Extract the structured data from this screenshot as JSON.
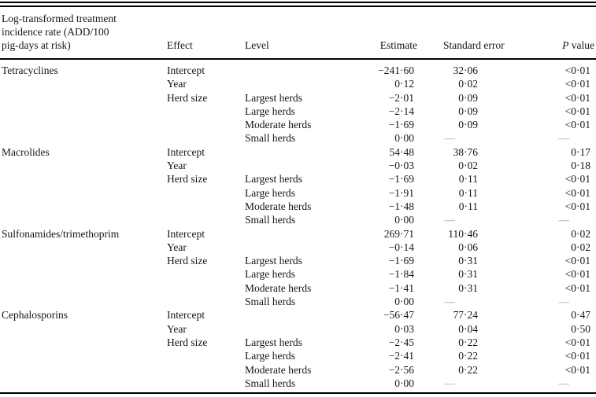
{
  "page": {
    "background": "#ffffff",
    "text_color": "#161616",
    "dash_color": "#9a9a9a",
    "missing_value_glyph": "—"
  },
  "table": {
    "stub_header_lines": [
      "Log-transformed treatment",
      "incidence rate (ADD/100",
      "pig-days at risk)"
    ],
    "columns": [
      {
        "key": "effect",
        "label": "Effect"
      },
      {
        "key": "level",
        "label": "Level"
      },
      {
        "key": "estimate",
        "label": "Estimate"
      },
      {
        "key": "se",
        "label": "Standard error"
      },
      {
        "key": "p",
        "label": "P value",
        "italic_first": true
      }
    ],
    "sections": [
      {
        "name": "Tetracyclines",
        "rows": [
          {
            "effect": "Intercept",
            "level": "",
            "estimate": "−241·60",
            "se": "32·06",
            "p": "<0·01"
          },
          {
            "effect": "Year",
            "level": "",
            "estimate": "0·12",
            "se": "0·02",
            "p": "<0·01"
          },
          {
            "effect": "Herd size",
            "level": "Largest herds",
            "estimate": "−2·01",
            "se": "0·09",
            "p": "<0·01"
          },
          {
            "effect": "",
            "level": "Large herds",
            "estimate": "−2·14",
            "se": "0·09",
            "p": "<0·01"
          },
          {
            "effect": "",
            "level": "Moderate herds",
            "estimate": "−1·69",
            "se": "0·09",
            "p": "<0·01"
          },
          {
            "effect": "",
            "level": "Small herds",
            "estimate": "0·00",
            "se": "—",
            "p": "—"
          }
        ]
      },
      {
        "name": "Macrolides",
        "rows": [
          {
            "effect": "Intercept",
            "level": "",
            "estimate": "54·48",
            "se": "38·76",
            "p": "0·17"
          },
          {
            "effect": "Year",
            "level": "",
            "estimate": "−0·03",
            "se": "0·02",
            "p": "0·18"
          },
          {
            "effect": "Herd size",
            "level": "Largest herds",
            "estimate": "−1·69",
            "se": "0·11",
            "p": "<0·01"
          },
          {
            "effect": "",
            "level": "Large herds",
            "estimate": "−1·91",
            "se": "0·11",
            "p": "<0·01"
          },
          {
            "effect": "",
            "level": "Moderate herds",
            "estimate": "−1·48",
            "se": "0·11",
            "p": "<0·01"
          },
          {
            "effect": "",
            "level": "Small herds",
            "estimate": "0·00",
            "se": "—",
            "p": "—"
          }
        ]
      },
      {
        "name": "Sulfonamides/trimethoprim",
        "rows": [
          {
            "effect": "Intercept",
            "level": "",
            "estimate": "269·71",
            "se": "110·46",
            "p": "0·02"
          },
          {
            "effect": "Year",
            "level": "",
            "estimate": "−0·14",
            "se": "0·06",
            "p": "0·02"
          },
          {
            "effect": "Herd size",
            "level": "Largest herds",
            "estimate": "−1·69",
            "se": "0·31",
            "p": "<0·01"
          },
          {
            "effect": "",
            "level": "Large herds",
            "estimate": "−1·84",
            "se": "0·31",
            "p": "<0·01"
          },
          {
            "effect": "",
            "level": "Moderate herds",
            "estimate": "−1·41",
            "se": "0·31",
            "p": "<0·01"
          },
          {
            "effect": "",
            "level": "Small herds",
            "estimate": "0·00",
            "se": "—",
            "p": "—"
          }
        ]
      },
      {
        "name": "Cephalosporins",
        "rows": [
          {
            "effect": "Intercept",
            "level": "",
            "estimate": "−56·47",
            "se": "77·24",
            "p": "0·47"
          },
          {
            "effect": "Year",
            "level": "",
            "estimate": "0·03",
            "se": "0·04",
            "p": "0·50"
          },
          {
            "effect": "Herd size",
            "level": "Largest herds",
            "estimate": "−2·45",
            "se": "0·22",
            "p": "<0·01"
          },
          {
            "effect": "",
            "level": "Large herds",
            "estimate": "−2·41",
            "se": "0·22",
            "p": "<0·01"
          },
          {
            "effect": "",
            "level": "Moderate herds",
            "estimate": "−2·56",
            "se": "0·22",
            "p": "<0·01"
          },
          {
            "effect": "",
            "level": "Small herds",
            "estimate": "0·00",
            "se": "—",
            "p": "—"
          }
        ]
      }
    ]
  }
}
